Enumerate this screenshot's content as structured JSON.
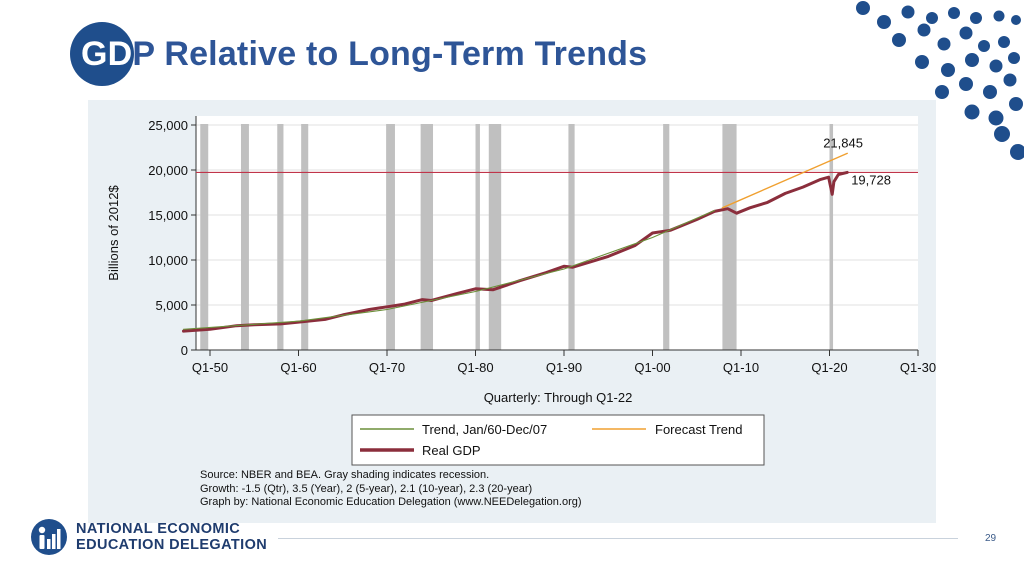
{
  "slide": {
    "title_prefix": "GD",
    "title_rest": "P Relative to Long-Term Trends",
    "page_number": "29",
    "logo_line1": "NATIONAL ECONOMIC",
    "logo_line2": "EDUCATION DELEGATION"
  },
  "colors": {
    "brand_blue": "#1f4e8c",
    "title_blue": "#2e5597",
    "real_gdp": "#8b2e3c",
    "trend": "#6b8f3a",
    "forecast": "#f0a030",
    "reference_line": "#c0354a",
    "recession": "#c0c0c0"
  },
  "chart_data": {
    "type": "line",
    "ylabel": "Billions of 2012$",
    "xlabel": "Quarterly: Through Q1-22",
    "ylim": [
      0,
      25000
    ],
    "xlim": [
      1945,
      2030
    ],
    "y_ticks": [
      0,
      5000,
      10000,
      15000,
      20000,
      25000
    ],
    "y_tick_labels": [
      "0",
      "5,000",
      "10,000",
      "15,000",
      "20,000",
      "25,000"
    ],
    "x_ticks": [
      1950,
      1960,
      1970,
      1980,
      1990,
      2000,
      2010,
      2020,
      2030
    ],
    "x_tick_labels": [
      "Q1-50",
      "Q1-60",
      "Q1-70",
      "Q1-80",
      "Q1-90",
      "Q1-00",
      "Q1-10",
      "Q1-20",
      "Q1-30"
    ],
    "reference_line": 19728,
    "recessions": [
      [
        1948.9,
        1949.8
      ],
      [
        1953.5,
        1954.4
      ],
      [
        1957.6,
        1958.3
      ],
      [
        1960.3,
        1961.1
      ],
      [
        1969.9,
        1970.9
      ],
      [
        1973.8,
        1975.2
      ],
      [
        1980.0,
        1980.5
      ],
      [
        1981.5,
        1982.9
      ],
      [
        1990.5,
        1991.2
      ],
      [
        2001.2,
        2001.9
      ],
      [
        2007.9,
        2009.5
      ],
      [
        2020.0,
        2020.4
      ]
    ],
    "series": [
      {
        "name": "Real GDP",
        "x": [
          1947,
          1950,
          1953,
          1955,
          1958,
          1960,
          1963,
          1965,
          1968,
          1970,
          1972,
          1974,
          1975,
          1978,
          1980,
          1982,
          1985,
          1988,
          1990,
          1991,
          1993,
          1995,
          1998,
          2000,
          2002,
          2005,
          2007,
          2008.5,
          2009.5,
          2011,
          2013,
          2015,
          2017,
          2019,
          2019.9,
          2020.3,
          2020.5,
          2021,
          2022
        ],
        "values": [
          2100,
          2300,
          2700,
          2800,
          2900,
          3100,
          3400,
          3900,
          4500,
          4800,
          5100,
          5600,
          5500,
          6300,
          6800,
          6700,
          7700,
          8600,
          9300,
          9200,
          9800,
          10400,
          11600,
          13000,
          13300,
          14500,
          15400,
          15700,
          15200,
          15800,
          16400,
          17400,
          18100,
          18950,
          19200,
          17300,
          18700,
          19500,
          19728
        ]
      },
      {
        "name": "Trend, Jan/60-Dec/07",
        "x": [
          1947,
          1960,
          1970,
          1980,
          1990,
          2000,
          2007
        ],
        "values": [
          2300,
          3200,
          4500,
          6500,
          9000,
          12500,
          15500
        ]
      },
      {
        "name": "Forecast Trend",
        "x": [
          2007.9,
          2022
        ],
        "values": [
          15800,
          21845
        ]
      }
    ],
    "annotations": [
      {
        "label": "21,845",
        "x": 2022,
        "y": 21845
      },
      {
        "label": "19,728",
        "x": 2022,
        "y": 19728
      }
    ],
    "legend": {
      "placement": "bottom",
      "entries": [
        "Trend, Jan/60-Dec/07",
        "Forecast Trend",
        "Real GDP"
      ]
    },
    "source_lines": [
      "Source: NBER and BEA. Gray shading indicates recession.",
      "Growth: -1.5 (Qtr), 3.5 (Year), 2 (5-year), 2.1 (10-year), 2.3 (20-year)",
      "Graph by: National Economic Education Delegation (www.NEEDelegation.org)"
    ]
  }
}
